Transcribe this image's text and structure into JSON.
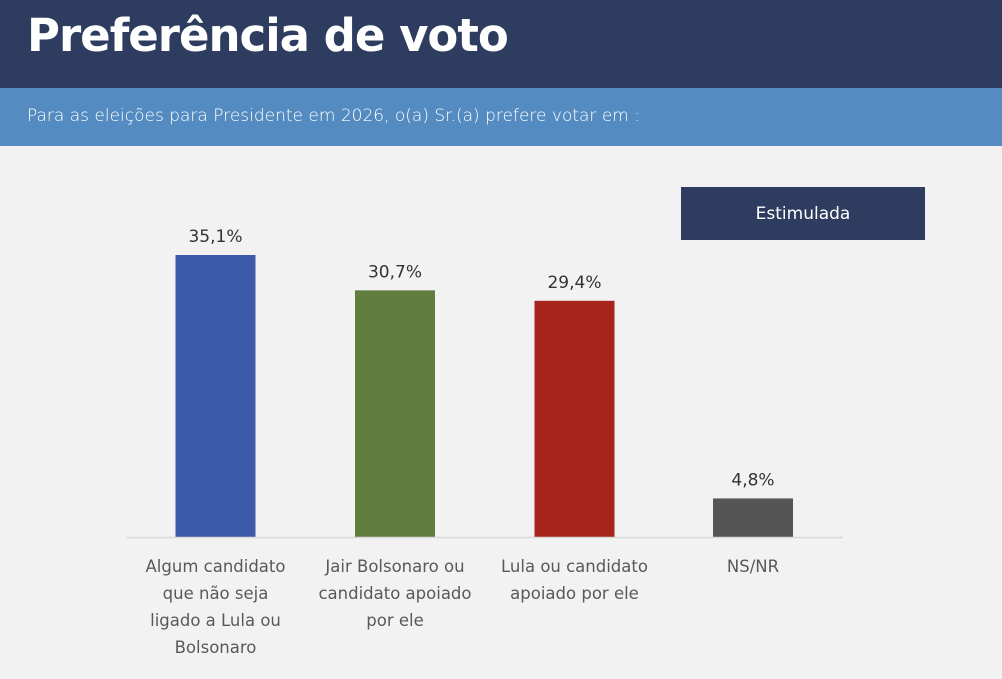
{
  "header": {
    "title": "Preferência de voto",
    "subtitle": "Para as eleições para Presidente em 2026, o(a) Sr.(a) prefere votar em :"
  },
  "badge": {
    "label": "Estimulada"
  },
  "chart_data": {
    "type": "bar",
    "title": "Preferência de voto",
    "subtitle": "Para as eleições para Presidente em 2026, o(a) Sr.(a) prefere votar em :",
    "xlabel": "",
    "ylabel": "",
    "grid": false,
    "ylim": [
      0,
      35.1
    ],
    "categories": [
      "Algum candidato que não seja ligado a Lula ou Bolsonaro",
      "Jair Bolsonaro ou candidato apoiado por ele",
      "Lula ou candidato apoiado por ele",
      "NS/NR"
    ],
    "category_lines": [
      [
        "Algum candidato",
        "que não seja",
        "ligado a Lula ou",
        "Bolsonaro"
      ],
      [
        "Jair Bolsonaro ou",
        "candidato apoiado",
        "por ele"
      ],
      [
        "Lula ou candidato",
        "apoiado por ele"
      ],
      [
        "NS/NR"
      ]
    ],
    "values": [
      35.1,
      30.7,
      29.4,
      4.8
    ],
    "value_labels": [
      "35,1%",
      "30,7%",
      "29,4%",
      "4,8%"
    ],
    "colors": [
      "#3c5aaa",
      "#607d3d",
      "#a6241b",
      "#555555"
    ],
    "legend": "none"
  }
}
